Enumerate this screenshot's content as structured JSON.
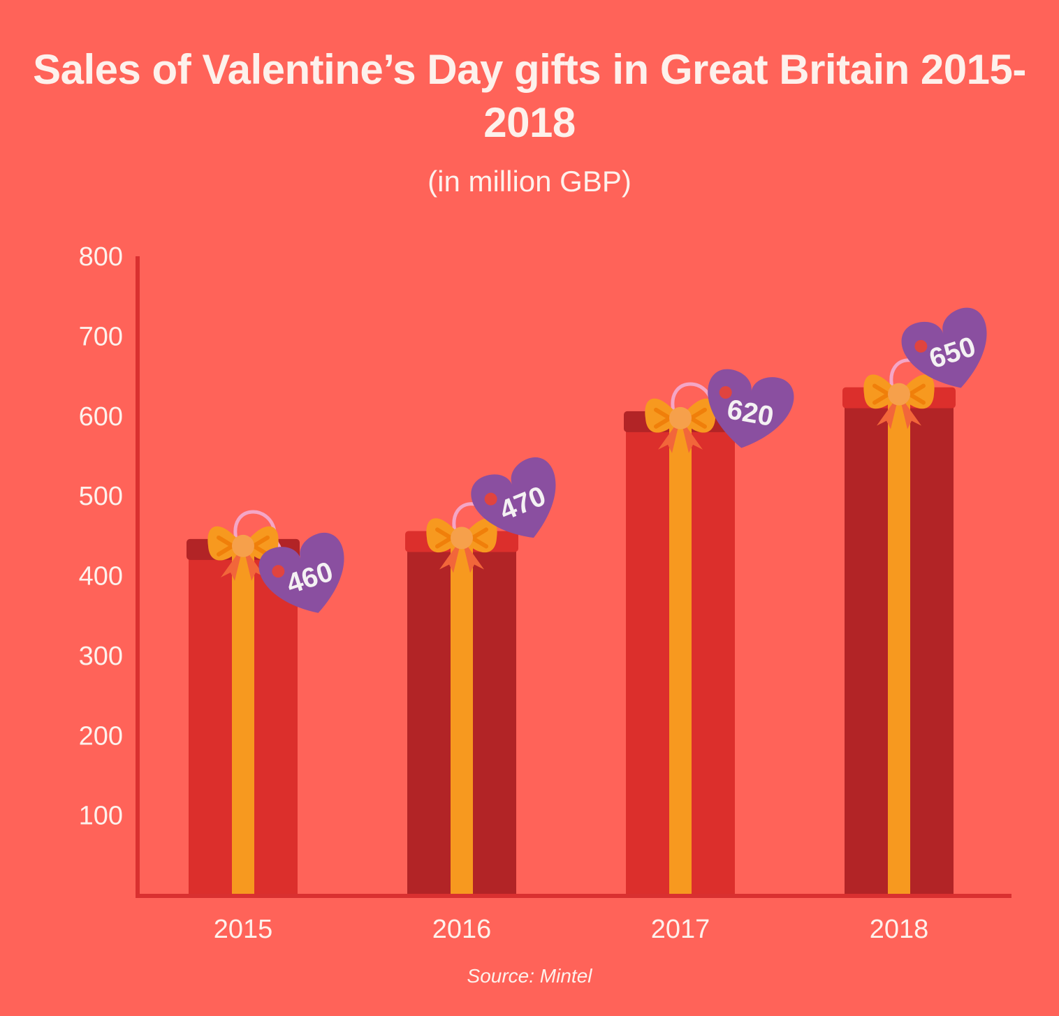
{
  "chart_data": {
    "type": "bar",
    "title": "Sales of Valentine’s Day gifts in Great Britain 2015-2018",
    "subtitle": "(in million GBP)",
    "xlabel": "",
    "ylabel": "",
    "categories": [
      "2015",
      "2016",
      "2017",
      "2018"
    ],
    "values": [
      460,
      470,
      620,
      650
    ],
    "data_labels": [
      "460",
      "470",
      "620",
      "650"
    ],
    "ylim": [
      0,
      800
    ],
    "yticks": [
      "100",
      "200",
      "300",
      "400",
      "500",
      "600",
      "700",
      "800"
    ],
    "grid": false,
    "source": "Source: Mintel"
  },
  "colors": {
    "background": "#FF6359",
    "bar_bright": "#DC2F2C",
    "bar_dark": "#B22426",
    "ribbon": "#F7991F",
    "bow_center": "#F6A04B",
    "tag": "#8A4FA0",
    "string": "#F4A6C6",
    "axis": "#D93030"
  }
}
